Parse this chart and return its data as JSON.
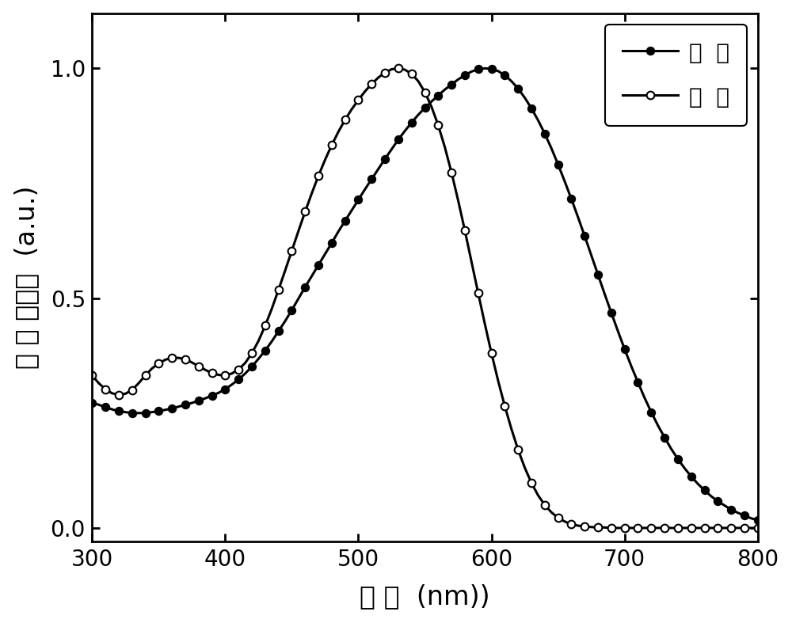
{
  "title": "",
  "xlabel": "波 长  (nm))",
  "ylabel": "归 一 化吸收  (a.u.)",
  "xlim": [
    300,
    800
  ],
  "ylim": [
    -0.03,
    1.12
  ],
  "yticks": [
    0.0,
    0.5,
    1.0
  ],
  "xticks": [
    300,
    400,
    500,
    600,
    700,
    800
  ],
  "film_x": [
    300,
    305,
    310,
    315,
    320,
    325,
    330,
    335,
    340,
    345,
    350,
    355,
    360,
    365,
    370,
    375,
    380,
    385,
    390,
    395,
    400,
    405,
    410,
    415,
    420,
    425,
    430,
    435,
    440,
    445,
    450,
    455,
    460,
    465,
    470,
    475,
    480,
    485,
    490,
    495,
    500,
    505,
    510,
    515,
    520,
    525,
    530,
    535,
    540,
    545,
    550,
    555,
    560,
    565,
    570,
    575,
    580,
    585,
    590,
    595,
    600,
    605,
    610,
    615,
    620,
    625,
    630,
    635,
    640,
    645,
    650,
    655,
    660,
    665,
    670,
    675,
    680,
    685,
    690,
    695,
    700,
    705,
    710,
    715,
    720,
    725,
    730,
    735,
    740,
    745,
    750,
    755,
    760,
    765,
    770,
    775,
    780,
    785,
    790,
    795,
    800
  ],
  "film_y": [
    0.272,
    0.268,
    0.263,
    0.258,
    0.254,
    0.252,
    0.25,
    0.25,
    0.25,
    0.252,
    0.254,
    0.257,
    0.26,
    0.264,
    0.268,
    0.272,
    0.277,
    0.282,
    0.288,
    0.294,
    0.302,
    0.312,
    0.323,
    0.336,
    0.351,
    0.368,
    0.386,
    0.406,
    0.428,
    0.45,
    0.474,
    0.499,
    0.524,
    0.548,
    0.572,
    0.596,
    0.62,
    0.645,
    0.668,
    0.691,
    0.714,
    0.737,
    0.759,
    0.781,
    0.803,
    0.824,
    0.845,
    0.864,
    0.882,
    0.899,
    0.914,
    0.928,
    0.941,
    0.954,
    0.965,
    0.976,
    0.985,
    0.993,
    0.998,
    1.0,
    0.999,
    0.994,
    0.985,
    0.972,
    0.956,
    0.936,
    0.913,
    0.887,
    0.858,
    0.826,
    0.791,
    0.754,
    0.716,
    0.676,
    0.635,
    0.593,
    0.551,
    0.509,
    0.468,
    0.428,
    0.389,
    0.352,
    0.317,
    0.283,
    0.252,
    0.223,
    0.197,
    0.172,
    0.15,
    0.13,
    0.112,
    0.096,
    0.082,
    0.069,
    0.058,
    0.049,
    0.04,
    0.033,
    0.027,
    0.021,
    0.017
  ],
  "solution_x": [
    300,
    305,
    310,
    315,
    320,
    325,
    330,
    335,
    340,
    345,
    350,
    355,
    360,
    365,
    370,
    375,
    380,
    385,
    390,
    395,
    400,
    405,
    410,
    415,
    420,
    425,
    430,
    435,
    440,
    445,
    450,
    455,
    460,
    465,
    470,
    475,
    480,
    485,
    490,
    495,
    500,
    505,
    510,
    515,
    520,
    525,
    530,
    535,
    540,
    545,
    550,
    555,
    560,
    565,
    570,
    575,
    580,
    585,
    590,
    595,
    600,
    605,
    610,
    615,
    620,
    625,
    630,
    635,
    640,
    645,
    650,
    655,
    660,
    665,
    670,
    675,
    680,
    685,
    690,
    695,
    700,
    705,
    710,
    715,
    720,
    725,
    730,
    735,
    740,
    745,
    750,
    755,
    760,
    765,
    770,
    775,
    780,
    785,
    790,
    795,
    800
  ],
  "solution_y": [
    0.332,
    0.315,
    0.302,
    0.293,
    0.29,
    0.292,
    0.3,
    0.315,
    0.332,
    0.347,
    0.358,
    0.366,
    0.37,
    0.37,
    0.367,
    0.36,
    0.352,
    0.344,
    0.337,
    0.333,
    0.332,
    0.336,
    0.345,
    0.359,
    0.38,
    0.407,
    0.44,
    0.477,
    0.518,
    0.56,
    0.603,
    0.646,
    0.688,
    0.728,
    0.766,
    0.801,
    0.833,
    0.862,
    0.888,
    0.911,
    0.931,
    0.95,
    0.966,
    0.98,
    0.991,
    0.998,
    1.0,
    0.997,
    0.988,
    0.972,
    0.948,
    0.916,
    0.876,
    0.828,
    0.773,
    0.712,
    0.647,
    0.579,
    0.511,
    0.444,
    0.38,
    0.32,
    0.265,
    0.215,
    0.17,
    0.131,
    0.098,
    0.071,
    0.05,
    0.034,
    0.022,
    0.014,
    0.008,
    0.005,
    0.003,
    0.002,
    0.001,
    0.001,
    0.0,
    0.0,
    0.0,
    0.0,
    0.0,
    0.0,
    0.0,
    0.0,
    0.0,
    0.0,
    0.0,
    0.0,
    0.0,
    0.0,
    0.0,
    0.0,
    0.0,
    0.0,
    0.0,
    0.0,
    0.0,
    0.0,
    0.0
  ],
  "line_color": "#000000",
  "marker_size": 7,
  "line_width": 2.2,
  "legend_film": "藄  膜",
  "legend_solution": "溶  液",
  "background_color": "#ffffff"
}
